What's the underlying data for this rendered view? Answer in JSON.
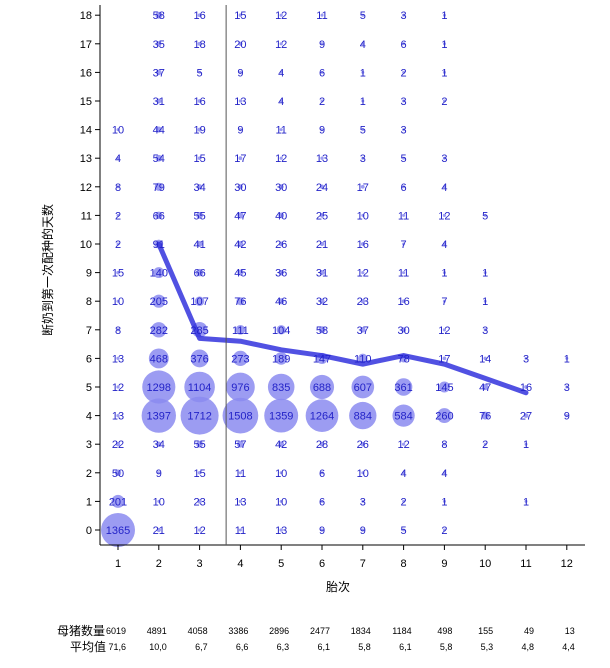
{
  "chart_data": {
    "type": "scatter",
    "xlabel": "胎次",
    "ylabel": "断奶到第一次配种的天数",
    "x_ticks": [
      1,
      2,
      3,
      4,
      5,
      6,
      7,
      8,
      9,
      10,
      11,
      12
    ],
    "y_ticks": [
      0,
      1,
      2,
      3,
      4,
      5,
      6,
      7,
      8,
      9,
      10,
      11,
      12,
      13,
      14,
      15,
      16,
      17,
      18
    ],
    "xlim": [
      0.6,
      12.6
    ],
    "ylim": [
      -0.5,
      18.5
    ],
    "vline_x": 3.65,
    "bubble_color": "#8b8bf0",
    "label_color": "#2323c8",
    "line_color": "#3333dd",
    "counts": {
      "1": [
        "1365",
        "201",
        "50",
        "22",
        "13",
        "12",
        "13",
        "8",
        "10",
        "15",
        "2",
        "2",
        "8",
        "4",
        "10",
        "",
        "",
        "",
        ""
      ],
      "2": [
        "21",
        "10",
        "9",
        "34",
        "1397",
        "1298",
        "468",
        "282",
        "205",
        "140",
        "91",
        "66",
        "79",
        "54",
        "44",
        "31",
        "37",
        "35",
        "58"
      ],
      "3": [
        "12",
        "23",
        "15",
        "55",
        "1712",
        "1104",
        "376",
        "285",
        "107",
        "66",
        "41",
        "55",
        "34",
        "15",
        "19",
        "16",
        "5",
        "18",
        "16"
      ],
      "4": [
        "11",
        "13",
        "11",
        "57",
        "1508",
        "976",
        "273",
        "111",
        "76",
        "45",
        "42",
        "47",
        "30",
        "17",
        "9",
        "13",
        "9",
        "20",
        "15"
      ],
      "5": [
        "13",
        "10",
        "10",
        "42",
        "1359",
        "835",
        "189",
        "104",
        "46",
        "36",
        "26",
        "40",
        "30",
        "12",
        "11",
        "4",
        "4",
        "12",
        "12"
      ],
      "6": [
        "9",
        "6",
        "6",
        "28",
        "1264",
        "688",
        "147",
        "58",
        "32",
        "31",
        "21",
        "25",
        "24",
        "13",
        "9",
        "2",
        "6",
        "9",
        "11"
      ],
      "7": [
        "9",
        "3",
        "10",
        "26",
        "884",
        "607",
        "110",
        "37",
        "23",
        "12",
        "16",
        "10",
        "17",
        "3",
        "5",
        "1",
        "1",
        "4",
        "5"
      ],
      "8": [
        "5",
        "2",
        "4",
        "12",
        "584",
        "361",
        "78",
        "30",
        "16",
        "11",
        "7",
        "11",
        "6",
        "5",
        "3",
        "3",
        "2",
        "6",
        "3"
      ],
      "9": [
        "2",
        "1",
        "4",
        "8",
        "260",
        "145",
        "17",
        "12",
        "7",
        "1",
        "4",
        "12",
        "4",
        "3",
        "",
        "2",
        "1",
        "1",
        "1"
      ],
      "10": [
        "",
        "",
        "",
        "2",
        "76",
        "47",
        "14",
        "3",
        "1",
        "1",
        "",
        "5",
        "",
        "",
        "",
        "",
        "",
        "",
        ""
      ],
      "11": [
        "",
        "1",
        "",
        "1",
        "27",
        "16",
        "3",
        "",
        "",
        "",
        "",
        "",
        "",
        "",
        "",
        "",
        "",
        "",
        ""
      ],
      "12": [
        "",
        "",
        "",
        "",
        "9",
        "3",
        "1",
        "",
        "",
        "",
        "",
        "",
        "",
        "",
        "",
        "",
        "",
        "",
        ""
      ]
    },
    "mean_line": {
      "x": [
        2,
        3,
        4,
        5,
        6,
        7,
        8,
        9,
        10,
        11
      ],
      "y": [
        10.0,
        6.7,
        6.6,
        6.3,
        6.1,
        5.8,
        6.1,
        5.8,
        5.3,
        4.8
      ]
    },
    "footer": {
      "sows_label": "母猪数量",
      "mean_label": "平均值",
      "sows": [
        "6019",
        "4891",
        "4058",
        "3386",
        "2896",
        "2477",
        "1834",
        "1184",
        "498",
        "155",
        "49",
        "13"
      ],
      "means": [
        "71,6",
        "10,0",
        "6,7",
        "6,6",
        "6,3",
        "6,1",
        "5,8",
        "6,1",
        "5,8",
        "5,3",
        "4,8",
        "4,4"
      ]
    }
  }
}
